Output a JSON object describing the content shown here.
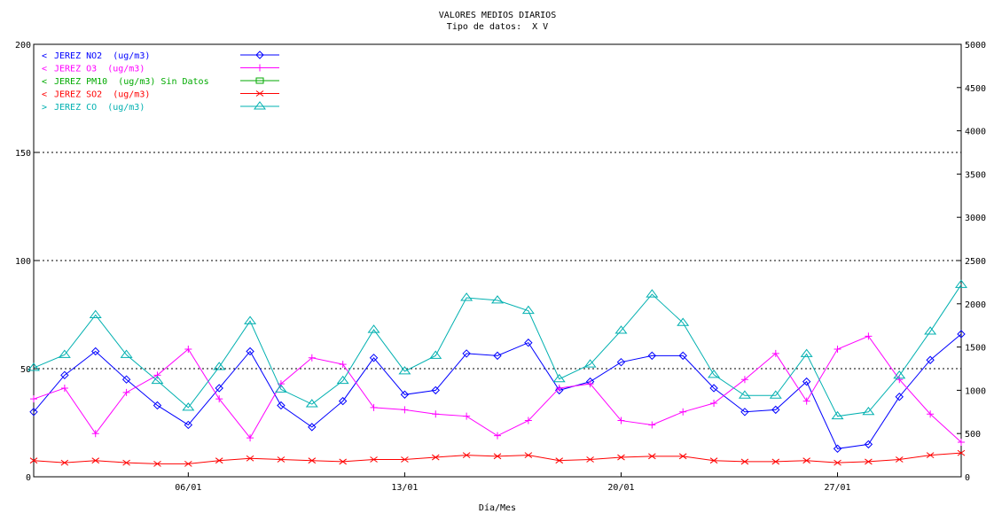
{
  "chart_data": {
    "type": "line",
    "title": "VALORES MEDIOS DIARIOS",
    "subtitle": "Tipo de datos:  X V",
    "xlabel": "Día/Mes",
    "x_ticks": [
      {
        "label": "06/01",
        "day": 6
      },
      {
        "label": "13/01",
        "day": 13
      },
      {
        "label": "20/01",
        "day": 20
      },
      {
        "label": "27/01",
        "day": 27
      }
    ],
    "xlim": [
      1,
      31
    ],
    "y_left": {
      "ylim": [
        0,
        200
      ],
      "ticks": [
        0,
        50,
        100,
        150,
        200
      ],
      "dotted_grid": [
        50,
        100,
        150
      ]
    },
    "y_right": {
      "ylim": [
        0,
        5000
      ],
      "ticks": [
        0,
        500,
        1000,
        1500,
        2000,
        2500,
        3000,
        3500,
        4000,
        4500,
        5000
      ]
    },
    "legend_position": "top-left",
    "series": [
      {
        "name": "JEREZ NO2  (ug/m3)",
        "legend_arrow": "<",
        "axis": "left",
        "color": "#0000ff",
        "marker": "diamond",
        "days": [
          1,
          2,
          3,
          4,
          5,
          6,
          7,
          8,
          9,
          10,
          11,
          12,
          13,
          14,
          15,
          16,
          17,
          18,
          19,
          20,
          21,
          22,
          23,
          24,
          25,
          26,
          27,
          28,
          29,
          30,
          31
        ],
        "values": [
          30,
          47,
          58,
          45,
          33,
          24,
          41,
          58,
          33,
          23,
          35,
          55,
          38,
          40,
          57,
          56,
          62,
          40,
          44,
          53,
          56,
          56,
          41,
          30,
          31,
          44,
          13,
          15,
          37,
          54,
          66
        ]
      },
      {
        "name": "JEREZ O3  (ug/m3)",
        "legend_arrow": "<",
        "axis": "left",
        "color": "#ff00ff",
        "marker": "plus",
        "days": [
          1,
          2,
          3,
          4,
          5,
          6,
          7,
          8,
          9,
          10,
          11,
          12,
          13,
          14,
          15,
          16,
          17,
          18,
          19,
          20,
          21,
          22,
          23,
          24,
          25,
          26,
          27,
          28,
          29,
          30,
          31
        ],
        "values": [
          36,
          41,
          20,
          39,
          47,
          59,
          36,
          18,
          43,
          55,
          52,
          32,
          31,
          29,
          28,
          19,
          26,
          41,
          43,
          26,
          24,
          30,
          34,
          45,
          57,
          35,
          59,
          65,
          45,
          29,
          16
        ]
      },
      {
        "name": "JEREZ PM10  (ug/m3) Sin Datos",
        "legend_arrow": "<",
        "axis": "left",
        "color": "#00aa00",
        "marker": "square",
        "days": [],
        "values": []
      },
      {
        "name": "JEREZ SO2  (ug/m3)",
        "legend_arrow": "<",
        "axis": "left",
        "color": "#ff0000",
        "marker": "cross",
        "days": [
          1,
          2,
          3,
          4,
          5,
          6,
          7,
          8,
          9,
          10,
          11,
          12,
          13,
          14,
          15,
          16,
          17,
          18,
          19,
          20,
          21,
          22,
          23,
          24,
          25,
          26,
          27,
          28,
          29,
          30,
          31
        ],
        "values": [
          7.5,
          6.5,
          7.5,
          6.5,
          6,
          6,
          7.5,
          8.5,
          8,
          7.5,
          7,
          8,
          8,
          9,
          10,
          9.5,
          10,
          7.5,
          8,
          9,
          9.5,
          9.5,
          7.5,
          7,
          7,
          7.5,
          6.5,
          7,
          8,
          10,
          11
        ]
      },
      {
        "name": "JEREZ CO  (ug/m3)",
        "legend_arrow": ">",
        "axis": "right",
        "color": "#00b0b0",
        "marker": "triangle",
        "days": [
          1,
          2,
          3,
          4,
          5,
          6,
          7,
          8,
          9,
          10,
          11,
          12,
          13,
          14,
          15,
          16,
          17,
          18,
          19,
          20,
          21,
          22,
          23,
          24,
          25,
          26,
          27,
          28,
          29,
          30,
          31
        ],
        "values": [
          1260,
          1410,
          1870,
          1410,
          1110,
          800,
          1270,
          1800,
          1010,
          840,
          1110,
          1700,
          1220,
          1400,
          2070,
          2040,
          1920,
          1130,
          1300,
          1690,
          2110,
          1780,
          1180,
          940,
          940,
          1420,
          700,
          750,
          1170,
          1680,
          2220
        ]
      }
    ]
  }
}
